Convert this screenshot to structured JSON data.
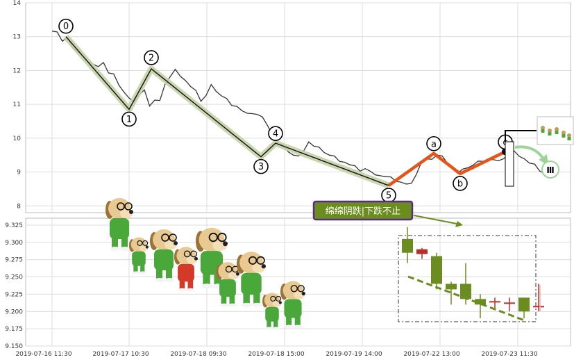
{
  "chart_data": [
    {
      "type": "line",
      "title": "",
      "xlabel": "",
      "ylabel": "",
      "ylim": [
        7.8,
        14.0
      ],
      "y_ticks": [
        8,
        9,
        10,
        11,
        12,
        13,
        14
      ],
      "grid": true,
      "series": [
        {
          "values": [
            13.2,
            13.15,
            12.85,
            12.95,
            12.7,
            12.55,
            12.4,
            12.3,
            12.2,
            12.1,
            12.2,
            11.95,
            11.9,
            11.55,
            11.4,
            11.2,
            11.05,
            11.25,
            11.45,
            10.95,
            11.1,
            11.15,
            11.6,
            11.8,
            12.0,
            11.85,
            11.7,
            11.5,
            11.45,
            11.1,
            11.25,
            11.55,
            11.4,
            11.25,
            11.15,
            11.0,
            10.95,
            10.8,
            10.7,
            10.75,
            10.7,
            10.6,
            10.4,
            10.1,
            9.85,
            9.75,
            9.62,
            9.5,
            9.45,
            9.65,
            9.9,
            9.75,
            9.7,
            9.6,
            9.5,
            9.45,
            9.35,
            9.3,
            9.2,
            9.15,
            9.05,
            9.1,
            9.0,
            8.95,
            8.9,
            8.85,
            8.82,
            8.75,
            8.7,
            8.62,
            8.7,
            8.95,
            9.3,
            9.35,
            9.4,
            9.5,
            9.45,
            9.3,
            9.1,
            8.95,
            9.05,
            9.15,
            9.2,
            9.3,
            9.35,
            9.4,
            9.35,
            9.3,
            9.42,
            9.55,
            9.6,
            9.5,
            9.4,
            9.25,
            9.2,
            9.05,
            8.95
          ]
        }
      ],
      "wave_points": [
        {
          "label": "0",
          "value": 13.0
        },
        {
          "label": "1",
          "value": 10.85
        },
        {
          "label": "2",
          "value": 12.05
        },
        {
          "label": "3",
          "value": 9.45
        },
        {
          "label": "4",
          "value": 9.85
        },
        {
          "label": "5",
          "value": 8.6
        },
        {
          "label": "a",
          "value": 9.55
        },
        {
          "label": "b",
          "value": 8.95
        },
        {
          "label": "c",
          "value": 9.6
        }
      ],
      "end_marker": "Ⅲ"
    },
    {
      "type": "candlestick",
      "title": "",
      "ylim": [
        9.15,
        9.335
      ],
      "y_ticks": [
        "9.150",
        "9.175",
        "9.200",
        "9.225",
        "9.250",
        "9.275",
        "9.300",
        "9.325"
      ],
      "x_tick_labels": [
        "2019-07-16 11:30",
        "2019-07-17 10:30",
        "2019-07-18 09:30",
        "2019-07-18 15:00",
        "2019-07-19 14:00",
        "2019-07-22 13:00",
        "2019-07-23 11:30"
      ],
      "candles": [
        {
          "open": 9.285,
          "close": 9.305,
          "high": 9.322,
          "low": 9.27,
          "direction": "down"
        },
        {
          "open": 9.29,
          "close": 9.283,
          "high": 9.292,
          "low": 9.276,
          "direction": "up"
        },
        {
          "open": 9.28,
          "close": 9.24,
          "high": 9.285,
          "low": 9.232,
          "direction": "down"
        },
        {
          "open": 9.232,
          "close": 9.24,
          "high": 9.243,
          "low": 9.21,
          "direction": "down"
        },
        {
          "open": 9.218,
          "close": 9.24,
          "high": 9.27,
          "low": 9.21,
          "direction": "down"
        },
        {
          "open": 9.21,
          "close": 9.218,
          "high": 9.225,
          "low": 9.19,
          "direction": "down"
        },
        {
          "open": 9.215,
          "close": 9.215,
          "high": 9.22,
          "low": 9.205,
          "direction": "up"
        },
        {
          "open": 9.213,
          "close": 9.213,
          "high": 9.22,
          "low": 9.2,
          "direction": "up"
        },
        {
          "open": 9.2,
          "close": 9.22,
          "high": 9.22,
          "low": 9.19,
          "direction": "down"
        },
        {
          "open": 9.208,
          "close": 9.208,
          "high": 9.24,
          "low": 9.2,
          "direction": "up"
        }
      ],
      "annotation": "绵绵阴跌|下跌不止"
    }
  ],
  "colors": {
    "price_line": "#333333",
    "wave_band": "#c4d3a8",
    "wave_line": "#1a1a1a",
    "projection": "#e85316",
    "bull_candle": "#6b8c1e",
    "bear_candle": "#b5302a",
    "callout_bg": "#6b8c1e",
    "callout_border": "#5a2c80",
    "grid": "#dcdcdc"
  }
}
